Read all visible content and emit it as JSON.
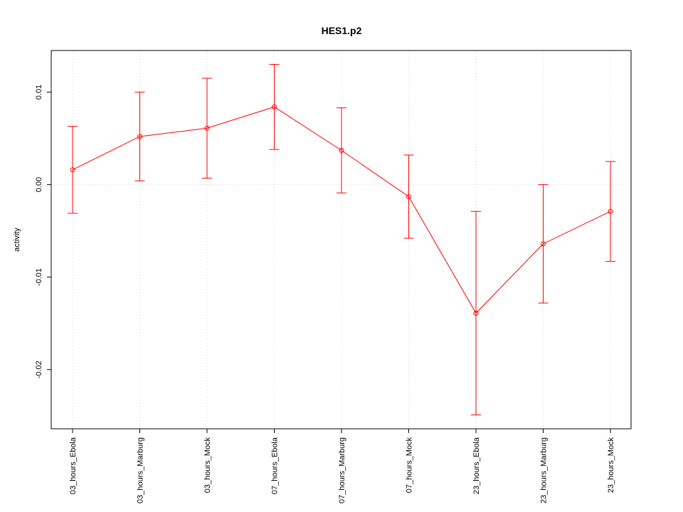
{
  "chart_data": {
    "type": "line",
    "title": "HES1.p2",
    "y_label": "activity",
    "categories": [
      "03_hours_Ebola",
      "03_hours_Marburg",
      "03_hours_Mock",
      "07_hours_Ebola",
      "07_hours_Marburg",
      "07_hours_Mock",
      "23_hours_Ebola",
      "23_hours_Marburg",
      "23_hours_Mock"
    ],
    "series": [
      {
        "color": "#ff0000",
        "values": [
          0.0016,
          0.0052,
          0.0061,
          0.0084,
          0.0037,
          -0.0013,
          -0.0139,
          -0.0064,
          -0.0029
        ],
        "errors": [
          0.0047,
          0.0048,
          0.0054,
          0.0046,
          0.0046,
          0.0045,
          0.011,
          0.0064,
          0.0054
        ]
      }
    ],
    "ylim": [
      -0.0264,
      0.0145
    ],
    "yticks": [
      -0.02,
      -0.01,
      {
        "value": 0,
        "label": "0.00"
      },
      0.01
    ],
    "reference_line": 0,
    "grid": true
  }
}
